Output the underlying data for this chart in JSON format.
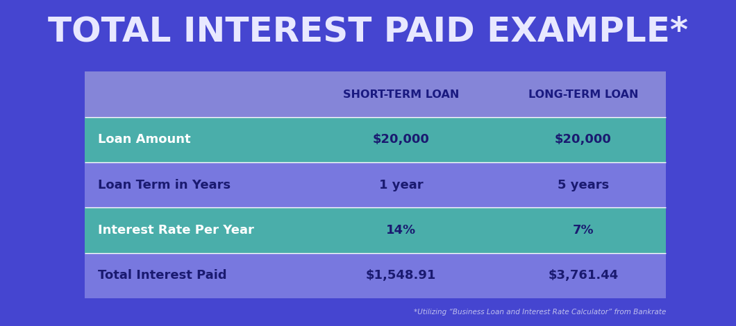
{
  "title": "TOTAL INTEREST PAID EXAMPLE*",
  "background_color": "#4545d0",
  "table_bg_light": "#7878df",
  "table_bg_teal": "#4aaeaa",
  "header_row_bg": "#8585d8",
  "col_headers": [
    "SHORT-TERM LOAN",
    "LONG-TERM LOAN"
  ],
  "row_labels": [
    "Loan Amount",
    "Loan Term in Years",
    "Interest Rate Per Year",
    "Total Interest Paid"
  ],
  "col1_values": [
    "$20,000",
    "1 year",
    "14%",
    "$1,548.91"
  ],
  "col2_values": [
    "$20,000",
    "5 years",
    "7%",
    "$3,761.44"
  ],
  "footnote": "*Utilizing “Business Loan and Interest Rate Calculator” from Bankrate",
  "title_color": "#e8e8ff",
  "header_text_color": "#1a1a80",
  "label_color_teal_row": "#ffffff",
  "label_color_light_row": "#1a1a70",
  "cell_text_color_teal": "#1a1a70",
  "cell_text_color_light": "#1a1a70",
  "footnote_color": "#c0c0ee",
  "title_fontsize": 36,
  "header_fontsize": 11.5,
  "cell_fontsize": 13
}
